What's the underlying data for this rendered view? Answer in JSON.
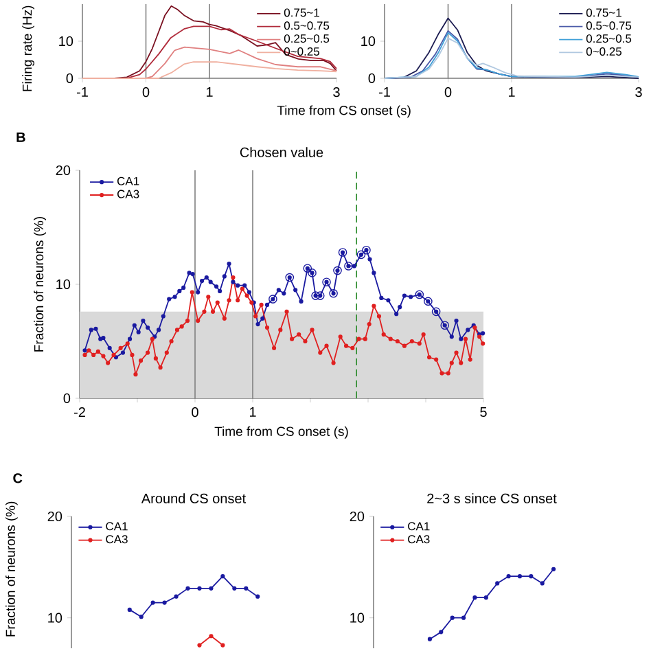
{
  "chart_data": [
    {
      "type": "line",
      "xlabel": "Time from CS onset (s)",
      "ylabel": "Firing rate (Hz)",
      "xlim": [
        -1,
        3
      ],
      "ylim": [
        0,
        20
      ],
      "xticks": [
        -1,
        0,
        1,
        3
      ],
      "yticks": [
        0,
        10
      ],
      "legend": "top right",
      "marker": "none",
      "ref_lines": [
        {
          "axis": "x",
          "value": 0,
          "color": "#808080"
        },
        {
          "axis": "x",
          "value": 1,
          "color": "#808080"
        }
      ],
      "series": [
        {
          "name": "0.75~1",
          "color": "#7a1020",
          "x": [
            -1,
            -0.5,
            -0.3,
            -0.1,
            0,
            0.1,
            0.2,
            0.3,
            0.4,
            0.5,
            0.6,
            0.75,
            0.9,
            1.0,
            1.1,
            1.3,
            1.5,
            1.75,
            1.9,
            2.04,
            2.2,
            2.4,
            2.6,
            2.8,
            2.9,
            3
          ],
          "values": [
            0,
            0,
            0.3,
            2,
            4.5,
            8,
            12.5,
            17,
            19.5,
            18.5,
            17,
            15.5,
            15.2,
            14.5,
            14.2,
            13,
            11.5,
            8.7,
            9,
            9.6,
            6.4,
            5.2,
            4.8,
            4.8,
            4,
            2
          ]
        },
        {
          "name": "0.5~0.75",
          "color": "#b02a3a",
          "x": [
            -1,
            -0.3,
            -0.1,
            0,
            0.2,
            0.39,
            0.6,
            0.75,
            1.0,
            1.18,
            1.32,
            1.46,
            1.75,
            2.04,
            2.39,
            2.75,
            2.9,
            3
          ],
          "values": [
            0,
            0,
            1,
            2.5,
            6.5,
            10.9,
            13.3,
            14,
            14,
            13.1,
            13.3,
            11.8,
            10,
            8.1,
            5.9,
            5.3,
            4.5,
            2.6
          ]
        },
        {
          "name": "0.25~0.5",
          "color": "#e08080",
          "x": [
            -1,
            0,
            0.1,
            0.3,
            0.45,
            0.61,
            1.0,
            1.32,
            1.46,
            1.75,
            2.04,
            2.39,
            2.75,
            3
          ],
          "values": [
            0,
            0,
            0.5,
            4,
            7.5,
            8.4,
            7.8,
            6.7,
            7.6,
            5.3,
            3.7,
            3.1,
            3.1,
            2
          ]
        },
        {
          "name": "0~0.25",
          "color": "#f0b0a0",
          "x": [
            -1,
            0.2,
            0.4,
            0.6,
            0.75,
            1.11,
            1.46,
            1.75,
            2.04,
            2.39,
            2.75,
            3
          ],
          "values": [
            0,
            0,
            1.5,
            3.8,
            4.4,
            4.4,
            3.7,
            3.1,
            2.6,
            2.2,
            2,
            1.8
          ]
        }
      ]
    },
    {
      "type": "line",
      "xlim": [
        -1,
        3
      ],
      "ylim": [
        0,
        20
      ],
      "xticks": [
        -1,
        0,
        1,
        3
      ],
      "yticks": [
        0,
        10
      ],
      "legend": "top right",
      "marker": "none",
      "ref_lines": [
        {
          "axis": "x",
          "value": 0,
          "color": "#808080"
        },
        {
          "axis": "x",
          "value": 1,
          "color": "#808080"
        }
      ],
      "series": [
        {
          "name": "0.75~1",
          "color": "#1a1a50",
          "x": [
            -1,
            -0.7,
            -0.5,
            -0.3,
            -0.15,
            0,
            0.15,
            0.3,
            0.45,
            0.6,
            0.8,
            1.0,
            1.5,
            2,
            2.5,
            3
          ],
          "values": [
            0,
            0.2,
            2,
            7,
            12,
            16.2,
            13,
            7,
            3.5,
            2,
            1.2,
            0.5,
            0.3,
            0.2,
            0.5,
            0
          ]
        },
        {
          "name": "0.5~0.75",
          "color": "#4a5aa8",
          "x": [
            -1,
            -0.6,
            -0.4,
            -0.2,
            0,
            0.15,
            0.3,
            0.45,
            0.6,
            0.8,
            1.0,
            2,
            2.5,
            2.8,
            3
          ],
          "values": [
            0,
            0.2,
            2,
            6.5,
            12.8,
            10.5,
            5.5,
            2.5,
            2.3,
            1.2,
            0.5,
            0.3,
            1.2,
            0.8,
            0.3
          ]
        },
        {
          "name": "0.25~0.5",
          "color": "#40a0d8",
          "x": [
            -1,
            -0.5,
            -0.3,
            -0.15,
            0,
            0.15,
            0.3,
            0.45,
            0.6,
            0.8,
            1,
            2,
            2.5,
            2.8,
            3
          ],
          "values": [
            0,
            0.5,
            3,
            7,
            12.3,
            10,
            5.5,
            2.8,
            2.3,
            1.2,
            0.5,
            0.5,
            1.6,
            1,
            0.4
          ]
        },
        {
          "name": "0~0.25",
          "color": "#b0c8e0",
          "x": [
            -1,
            -0.5,
            -0.3,
            -0.15,
            0,
            0.15,
            0.3,
            0.45,
            0.55,
            0.7,
            0.9,
            1.1,
            2,
            2.5,
            3
          ],
          "values": [
            0,
            0.5,
            2.5,
            6,
            10.8,
            9.5,
            5.5,
            3.5,
            4,
            3,
            1.5,
            0.6,
            0.3,
            0.8,
            0.3
          ]
        }
      ]
    },
    {
      "type": "line",
      "title": "Chosen value",
      "annotations": [
        "B"
      ],
      "xlabel": "Time from CS onset (s)",
      "ylabel": "Fraction of neurons (%)",
      "xlim": [
        -2,
        5
      ],
      "ylim": [
        0,
        20
      ],
      "xticks": [
        -2,
        {
          "value": -1,
          "label": null
        },
        0,
        1,
        {
          "value": 2,
          "label": null
        },
        {
          "value": 3,
          "label": null
        },
        {
          "value": 4,
          "label": null
        },
        5
      ],
      "yticks": [
        0,
        10,
        20
      ],
      "legend": "top left",
      "marker": "circle",
      "bands": [
        {
          "axis": "y",
          "from": 0,
          "to": 7.6,
          "color": "#d9d9d9"
        }
      ],
      "ref_lines": [
        {
          "axis": "x",
          "value": 0,
          "color": "#808080"
        },
        {
          "axis": "x",
          "value": 1,
          "color": "#808080"
        },
        {
          "axis": "x",
          "value": 2.8,
          "color": "#2a8a2a",
          "line_style": "dashed"
        }
      ],
      "series": [
        {
          "name": "CA1",
          "color": "#1a1aa0",
          "x": [
            -1.91,
            -1.8,
            -1.72,
            -1.64,
            -1.59,
            -1.48,
            -1.37,
            -1.25,
            -1.13,
            -1.05,
            -0.98,
            -0.9,
            -0.82,
            -0.7,
            -0.63,
            -0.55,
            -0.45,
            -0.35,
            -0.27,
            -0.2,
            -0.1,
            -0.04,
            0.05,
            0.12,
            0.2,
            0.27,
            0.37,
            0.43,
            0.51,
            0.59,
            0.66,
            0.74,
            0.86,
            0.94,
            1.02,
            1.09,
            1.17,
            1.25,
            1.35,
            1.45,
            1.54,
            1.64,
            1.74,
            1.84,
            1.95,
            2.03,
            2.09,
            2.17,
            2.28,
            2.4,
            2.47,
            2.56,
            2.66,
            2.76,
            2.88,
            2.97,
            3.03,
            3.1,
            3.23,
            3.35,
            3.49,
            3.55,
            3.63,
            3.74,
            3.89,
            4.04,
            4.18,
            4.33,
            4.45,
            4.53,
            4.61,
            4.73,
            4.83,
            4.93,
            4.99
          ],
          "values": [
            4.2,
            6.0,
            6.1,
            5.2,
            5.3,
            4.4,
            3.6,
            4.0,
            5.2,
            6.4,
            5.8,
            6.8,
            6.2,
            5.4,
            6.0,
            7.2,
            8.7,
            8.9,
            9.4,
            9.7,
            11.0,
            10.9,
            9.3,
            10.3,
            10.6,
            10.2,
            9.8,
            9.4,
            10.7,
            11.8,
            10.2,
            9.9,
            9.9,
            9.3,
            8.4,
            6.5,
            7.0,
            8.2,
            8.7,
            9.5,
            9.2,
            10.6,
            9.5,
            8.5,
            11.4,
            11.0,
            9.0,
            9.0,
            10.2,
            9.2,
            11.2,
            12.8,
            11.6,
            11.6,
            12.6,
            13.0,
            12.2,
            11.0,
            8.8,
            8.6,
            7.4,
            8.0,
            9.0,
            8.9,
            9.1,
            8.5,
            7.6,
            6.4,
            5.4,
            6.8,
            5.2,
            6.0,
            6.4,
            5.6,
            5.7
          ]
        },
        {
          "name": "CA3",
          "color": "#e02020",
          "x": [
            -1.91,
            -1.84,
            -1.76,
            -1.68,
            -1.59,
            -1.51,
            -1.41,
            -1.29,
            -1.17,
            -1.09,
            -1.03,
            -0.94,
            -0.82,
            -0.74,
            -0.68,
            -0.6,
            -0.49,
            -0.41,
            -0.31,
            -0.23,
            -0.13,
            -0.05,
            0.05,
            0.16,
            0.23,
            0.31,
            0.39,
            0.51,
            0.59,
            0.66,
            0.74,
            0.82,
            0.9,
            0.98,
            1.05,
            1.15,
            1.25,
            1.37,
            1.48,
            1.59,
            1.68,
            1.8,
            1.91,
            2.03,
            2.17,
            2.28,
            2.4,
            2.52,
            2.62,
            2.73,
            2.84,
            2.95,
            3.02,
            3.1,
            3.19,
            3.27,
            3.39,
            3.51,
            3.63,
            3.76,
            3.89,
            3.96,
            4.06,
            4.18,
            4.28,
            4.39,
            4.45,
            4.53,
            4.61,
            4.69,
            4.77,
            4.85,
            4.93,
            4.99
          ],
          "values": [
            3.8,
            4.2,
            3.8,
            4.1,
            3.7,
            3.1,
            3.8,
            4.4,
            4.8,
            3.8,
            2.1,
            3.3,
            4.0,
            5.2,
            3.5,
            2.7,
            4.0,
            5.0,
            6.0,
            6.3,
            6.8,
            9.3,
            6.8,
            7.6,
            8.9,
            7.6,
            8.4,
            7.0,
            8.6,
            10.6,
            8.6,
            9.6,
            9.0,
            8.4,
            7.2,
            8.2,
            6.2,
            4.4,
            6.0,
            7.6,
            5.2,
            5.6,
            5.0,
            6.0,
            4.0,
            4.6,
            3.1,
            5.4,
            4.6,
            4.4,
            5.2,
            5.2,
            6.5,
            8.1,
            7.2,
            5.6,
            5.2,
            5.0,
            4.6,
            5.0,
            4.8,
            5.6,
            3.6,
            3.4,
            2.2,
            2.2,
            3.1,
            4.0,
            3.1,
            5.2,
            3.4,
            6.2,
            5.4,
            4.8
          ]
        },
        {
          "type": "scatter",
          "color": "#1a1aa0",
          "x": [
            1.35,
            1.64,
            1.95,
            2.03,
            2.09,
            2.17,
            2.28,
            2.4,
            2.47,
            2.56,
            2.66,
            2.88,
            2.97,
            3.89,
            4.04,
            4.18,
            4.33
          ],
          "values": [
            8.7,
            10.6,
            11.4,
            11.0,
            9.0,
            9.0,
            10.2,
            9.2,
            11.2,
            12.8,
            11.6,
            12.6,
            13.0,
            9.1,
            8.5,
            7.6,
            6.4
          ]
        }
      ]
    },
    {
      "type": "line",
      "title": "Around CS onset",
      "annotations": [
        "C"
      ],
      "ylabel": "Fraction of neurons (%)",
      "categories": [
        null,
        null,
        null,
        null,
        null,
        null,
        null,
        null,
        null,
        null,
        null,
        null
      ],
      "ylim": [
        7,
        20
      ],
      "yticks": [
        10,
        20
      ],
      "legend": "top left",
      "marker": "circle",
      "series": [
        {
          "name": "CA1",
          "color": "#1a1aa0",
          "values": [
            10.8,
            10.1,
            11.5,
            11.5,
            12.1,
            12.9,
            12.9,
            12.9,
            14.1,
            12.9,
            12.9,
            12.1
          ]
        },
        {
          "name": "CA3",
          "color": "#e02020",
          "values": [
            null,
            null,
            null,
            null,
            null,
            null,
            7.3,
            8.2,
            7.3,
            null,
            null,
            null
          ]
        }
      ]
    },
    {
      "type": "line",
      "title": "2~3 s since CS onset",
      "categories": [
        null,
        null,
        null,
        null,
        null,
        null,
        null,
        null,
        null,
        null,
        null,
        null
      ],
      "ylim": [
        7,
        20
      ],
      "yticks": [
        10,
        20
      ],
      "legend": "top left",
      "marker": "circle",
      "series": [
        {
          "name": "CA1",
          "color": "#1a1aa0",
          "values": [
            7.9,
            8.6,
            10,
            10,
            12.0,
            12.0,
            13.4,
            14.1,
            14.1,
            14.1,
            13.4,
            14.8
          ]
        },
        {
          "name": "CA3",
          "color": "#e02020",
          "values": [
            null,
            null,
            null,
            null,
            null,
            null,
            null,
            null,
            null,
            null,
            null,
            null
          ]
        }
      ]
    }
  ]
}
